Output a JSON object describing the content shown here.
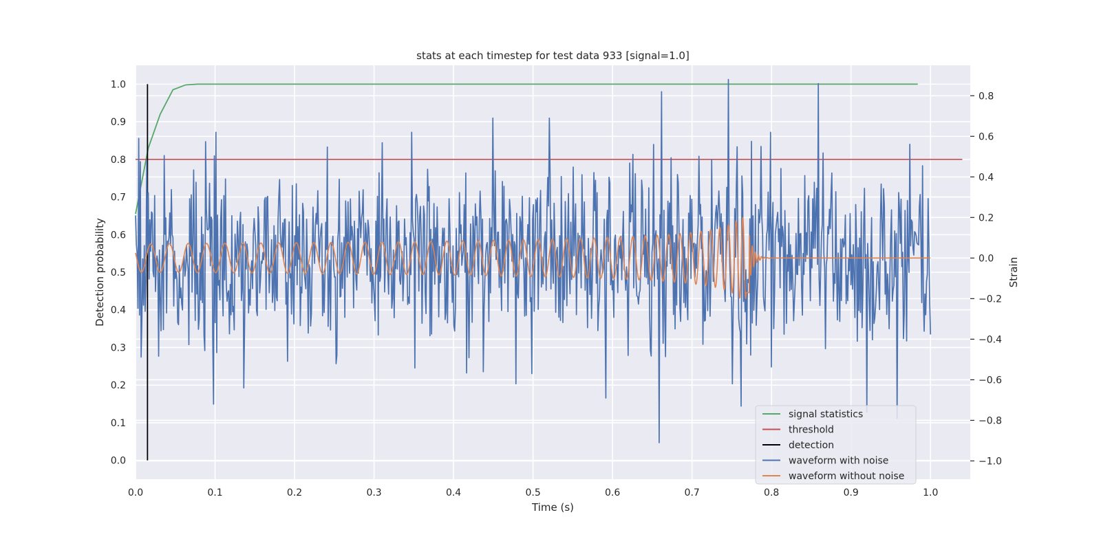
{
  "chart_data": {
    "type": "line",
    "title": "stats at each timestep for test data 933 [signal=1.0]",
    "xlabel": "Time (s)",
    "ylabel": "Detection probability",
    "y2label": "Strain",
    "xlim": [
      0.0,
      1.05
    ],
    "ylim": [
      -0.05,
      1.05
    ],
    "y2lim": [
      -1.09,
      0.95
    ],
    "xticks": [
      "0.0",
      "0.1",
      "0.2",
      "0.3",
      "0.4",
      "0.5",
      "0.6",
      "0.7",
      "0.8",
      "0.9",
      "1.0"
    ],
    "yticks": [
      "0.0",
      "0.1",
      "0.2",
      "0.3",
      "0.4",
      "0.5",
      "0.6",
      "0.7",
      "0.8",
      "0.9",
      "1.0"
    ],
    "y2ticks": [
      "−1.0",
      "−0.8",
      "−0.6",
      "−0.4",
      "−0.2",
      "0.0",
      "0.2",
      "0.4",
      "0.6",
      "0.8"
    ],
    "grid": true,
    "legend_position": "bottom-right",
    "background": "#eaeaf2",
    "colors": {
      "signal_statistics": "#55a868",
      "threshold": "#c44e52",
      "detection": "#000000",
      "waveform_with_noise": "#4c72b0",
      "waveform_without_noise": "#dd8452"
    },
    "legend": [
      "signal statistics",
      "threshold",
      "detection",
      "waveform with noise",
      "waveform without noise"
    ],
    "signal_statistics": {
      "x": [
        0.0,
        0.016,
        0.031,
        0.047,
        0.063,
        0.078,
        0.094,
        0.2,
        0.4,
        0.6,
        0.8,
        0.984
      ],
      "y": [
        0.655,
        0.83,
        0.92,
        0.985,
        0.998,
        1.0,
        1.0,
        1.0,
        1.0,
        1.0,
        1.0,
        1.0
      ]
    },
    "threshold": {
      "value": 0.8,
      "x_range": [
        0.0,
        1.04
      ]
    },
    "detection": {
      "x": 0.015,
      "y_range": [
        0.0,
        1.0
      ]
    },
    "waveform_with_noise": {
      "axis": "right",
      "x_range": [
        0.0,
        1.0
      ],
      "points": 1000,
      "std": 0.22,
      "peaks": [
        {
          "x": 0.004,
          "y": 0.59
        },
        {
          "x": 0.098,
          "y": -0.72
        },
        {
          "x": 0.101,
          "y": 0.62
        },
        {
          "x": 0.136,
          "y": -0.64
        },
        {
          "x": 0.449,
          "y": 0.69
        },
        {
          "x": 0.521,
          "y": 0.69
        },
        {
          "x": 0.592,
          "y": -0.69
        },
        {
          "x": 0.659,
          "y": -0.91
        },
        {
          "x": 0.662,
          "y": 0.82
        },
        {
          "x": 0.746,
          "y": 0.88
        },
        {
          "x": 0.762,
          "y": -0.73
        },
        {
          "x": 0.859,
          "y": 0.86
        },
        {
          "x": 0.92,
          "y": -0.76
        },
        {
          "x": 0.958,
          "y": -0.79
        }
      ]
    },
    "waveform_without_noise": {
      "axis": "right",
      "x_range": [
        0.0,
        1.0
      ],
      "merger_time": 0.772,
      "start_frequency_hz": 42,
      "start_amplitude": 0.07,
      "peak_amplitude": 0.2,
      "post_merger_value": 0.0
    }
  }
}
